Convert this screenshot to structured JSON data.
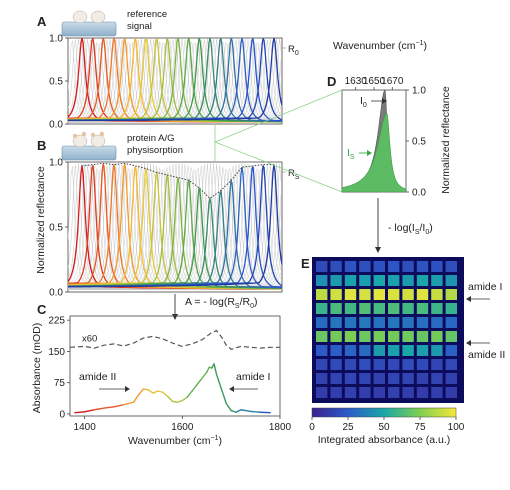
{
  "panels": {
    "A": {
      "letter": "A",
      "chip_label_1": "reference",
      "chip_label_2": "signal",
      "ref_label": "R",
      "ref_sub": "0"
    },
    "B": {
      "letter": "B",
      "chip_label_1": "protein A/G",
      "chip_label_2": "physisorption",
      "ref_label": "R",
      "ref_sub": "S"
    },
    "C": {
      "letter": "C"
    },
    "D": {
      "letter": "D"
    },
    "E": {
      "letter": "E"
    }
  },
  "shared": {
    "ylabel_AB": "Normalized reflectance",
    "equation": "A = - log(R",
    "equation_s": "S",
    "equation_mid": "/R",
    "equation_0": "0",
    "equation_end": ")",
    "arrow_DE_label": "- log(I",
    "arrow_DE_s": "S",
    "arrow_DE_mid": "/I",
    "arrow_DE_0": "0",
    "arrow_DE_end": ")"
  },
  "chart_data": [
    {
      "id": "A",
      "type": "line",
      "title": "",
      "xlabel": "",
      "ylabel": "Normalized reflectance",
      "ylim": [
        0,
        1.0
      ],
      "yticks": [
        0.0,
        0.5,
        1.0
      ],
      "ytick_labels": [
        "0.0",
        "0.5",
        "1.0"
      ],
      "series_count": 19,
      "peak_value": 1.0,
      "colors": [
        "#d7191c",
        "#e03a1f",
        "#ea5a23",
        "#f07a27",
        "#f59a2b",
        "#f8b92f",
        "#e8c936",
        "#c8c43a",
        "#a4bf3e",
        "#7eb542",
        "#5aa946",
        "#3e9b4a",
        "#3a8d6a",
        "#367f8a",
        "#3271a7",
        "#2e63c4",
        "#2955d0",
        "#2447b8",
        "#1f3aa0"
      ]
    },
    {
      "id": "B",
      "type": "line",
      "title": "",
      "xlabel": "",
      "ylabel": "Normalized reflectance",
      "ylim": [
        0,
        1.0
      ],
      "yticks": [
        0.0,
        0.5,
        1.0
      ],
      "ytick_labels": [
        "0.0",
        "0.5",
        "1.0"
      ],
      "series_count": 19,
      "envelope": [
        0.97,
        0.98,
        0.99,
        0.98,
        0.99,
        0.97,
        0.95,
        0.92,
        0.9,
        0.88,
        0.86,
        0.8,
        0.72,
        0.78,
        0.86,
        0.96,
        0.97,
        0.98,
        0.98
      ]
    },
    {
      "id": "C",
      "type": "line",
      "xlabel": "Wavenumber (cm",
      "xlabel_sup": "−1",
      "xlabel_end": ")",
      "ylabel": "Absorbance (mOD)",
      "xlim": [
        1370,
        1800
      ],
      "ylim": [
        -5,
        235
      ],
      "xticks": [
        1400,
        1600,
        1800
      ],
      "xtick_labels": [
        "1400",
        "1600",
        "1800"
      ],
      "yticks": [
        0,
        75,
        150,
        225
      ],
      "ytick_labels": [
        "0",
        "75",
        "150",
        "225"
      ],
      "scaled_label": "x60",
      "annotation_left": "amide II",
      "annotation_right": "amide I",
      "absorbance": {
        "x": [
          1380,
          1400,
          1420,
          1440,
          1460,
          1480,
          1500,
          1510,
          1520,
          1530,
          1540,
          1550,
          1560,
          1570,
          1580,
          1590,
          1600,
          1610,
          1620,
          1630,
          1640,
          1650,
          1655,
          1660,
          1665,
          1670,
          1680,
          1690,
          1700,
          1710,
          1720,
          1740,
          1760,
          1780
        ],
        "y": [
          3,
          5,
          10,
          14,
          17,
          22,
          28,
          45,
          60,
          58,
          50,
          55,
          52,
          42,
          30,
          28,
          32,
          40,
          55,
          70,
          85,
          100,
          112,
          110,
          120,
          95,
          60,
          25,
          8,
          4,
          10,
          6,
          4,
          3
        ]
      },
      "scaled": {
        "x": [
          1370,
          1400,
          1420,
          1440,
          1460,
          1480,
          1500,
          1520,
          1540,
          1560,
          1580,
          1600,
          1620,
          1640,
          1660,
          1670,
          1680,
          1690,
          1700,
          1720,
          1740,
          1760,
          1780,
          1800
        ],
        "y": [
          160,
          162,
          158,
          165,
          168,
          163,
          170,
          182,
          186,
          180,
          170,
          162,
          168,
          178,
          195,
          200,
          185,
          165,
          155,
          162,
          160,
          158,
          160,
          160
        ]
      }
    },
    {
      "id": "D",
      "type": "area",
      "xlabel": "Wavenumber (cm",
      "xlabel_sup": "−1",
      "xlabel_end": ")",
      "ylabel": "Normalized reflectance",
      "xticks": [
        1630,
        1650,
        1670
      ],
      "xtick_labels": [
        "1630",
        "1650",
        "1670"
      ],
      "yticks": [
        0.0,
        0.5,
        1.0
      ],
      "ytick_labels": [
        "0.0",
        "0.5",
        "1.0"
      ],
      "xlim": [
        1615,
        1685
      ],
      "ylim": [
        0,
        1.0
      ],
      "I0_label": "I",
      "I0_sub": "0",
      "Is_label": "I",
      "Is_sub": "S",
      "I0_peak": 1.0,
      "Is_peak": 0.77,
      "I0_center": 1662,
      "Is_center": 1664
    },
    {
      "id": "E",
      "type": "heatmap",
      "rows": 10,
      "cols": 10,
      "colorbar_label": "Integrated absorbance (a.u.)",
      "colorbar_ticks": [
        0,
        25,
        50,
        75,
        100
      ],
      "colorbar_tick_labels": [
        "0",
        "25",
        "50",
        "75",
        "100"
      ],
      "annotation_top": "amide I",
      "annotation_bottom": "amide II",
      "values": [
        [
          18,
          20,
          22,
          20,
          21,
          23,
          20,
          22,
          21,
          20
        ],
        [
          42,
          46,
          48,
          47,
          50,
          48,
          46,
          49,
          47,
          44
        ],
        [
          88,
          92,
          95,
          93,
          96,
          94,
          92,
          95,
          90,
          86
        ],
        [
          58,
          62,
          60,
          64,
          61,
          63,
          60,
          62,
          59,
          57
        ],
        [
          30,
          34,
          33,
          35,
          32,
          34,
          33,
          31,
          30,
          29
        ],
        [
          70,
          72,
          74,
          70,
          73,
          72,
          71,
          69,
          72,
          68
        ],
        [
          24,
          26,
          28,
          30,
          46,
          48,
          50,
          47,
          45,
          27
        ],
        [
          16,
          18,
          17,
          19,
          18,
          17,
          19,
          18,
          16,
          17
        ],
        [
          14,
          15,
          16,
          15,
          14,
          16,
          15,
          14,
          15,
          14
        ],
        [
          12,
          13,
          14,
          13,
          12,
          14,
          13,
          12,
          13,
          12
        ]
      ]
    }
  ]
}
